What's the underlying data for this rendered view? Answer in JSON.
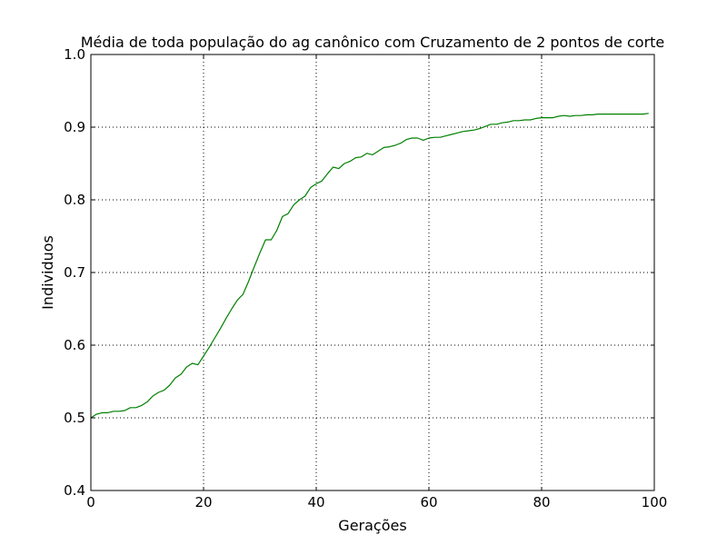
{
  "chart_data": {
    "type": "line",
    "title": "Média de toda população do ag canônico com Cruzamento de 2 pontos de corte",
    "xlabel": "Gerações",
    "ylabel": "Individuos",
    "xlim": [
      0,
      100
    ],
    "ylim": [
      0.4,
      1.0
    ],
    "x_ticks": [
      "0",
      "20",
      "40",
      "60",
      "80",
      "100"
    ],
    "y_ticks": [
      "0.4",
      "0.5",
      "0.6",
      "0.7",
      "0.8",
      "0.9",
      "1.0"
    ],
    "grid": true,
    "line_color": "#008000",
    "series": [
      {
        "x": [
          0,
          1,
          2,
          3,
          4,
          5,
          6,
          7,
          8,
          9,
          10,
          11,
          12,
          13,
          14,
          15,
          16,
          17,
          18,
          19,
          20,
          21,
          22,
          23,
          24,
          25,
          26,
          27,
          28,
          29,
          30,
          31,
          32,
          33,
          34,
          35,
          36,
          37,
          38,
          39,
          40,
          41,
          42,
          43,
          44,
          45,
          46,
          47,
          48,
          49,
          50,
          51,
          52,
          53,
          54,
          55,
          56,
          57,
          58,
          59,
          60,
          61,
          62,
          63,
          64,
          65,
          66,
          67,
          68,
          69,
          70,
          71,
          72,
          73,
          74,
          75,
          76,
          77,
          78,
          79,
          80,
          81,
          82,
          83,
          84,
          85,
          86,
          87,
          88,
          89,
          90,
          91,
          92,
          93,
          94,
          95,
          96,
          97,
          98,
          99
        ],
        "values": [
          0.5,
          0.505,
          0.507,
          0.507,
          0.509,
          0.509,
          0.51,
          0.514,
          0.514,
          0.517,
          0.522,
          0.53,
          0.535,
          0.538,
          0.545,
          0.555,
          0.56,
          0.57,
          0.575,
          0.573,
          0.585,
          0.597,
          0.61,
          0.623,
          0.637,
          0.65,
          0.662,
          0.67,
          0.688,
          0.708,
          0.727,
          0.745,
          0.745,
          0.758,
          0.777,
          0.781,
          0.793,
          0.8,
          0.805,
          0.817,
          0.822,
          0.826,
          0.836,
          0.845,
          0.843,
          0.85,
          0.853,
          0.858,
          0.859,
          0.864,
          0.862,
          0.867,
          0.872,
          0.873,
          0.875,
          0.878,
          0.883,
          0.885,
          0.885,
          0.882,
          0.885,
          0.886,
          0.886,
          0.888,
          0.89,
          0.892,
          0.894,
          0.895,
          0.896,
          0.898,
          0.901,
          0.904,
          0.904,
          0.906,
          0.907,
          0.909,
          0.909,
          0.91,
          0.91,
          0.912,
          0.913,
          0.913,
          0.913,
          0.915,
          0.916,
          0.915,
          0.916,
          0.916,
          0.917,
          0.917,
          0.918,
          0.918,
          0.918,
          0.918,
          0.918,
          0.918,
          0.918,
          0.918,
          0.918,
          0.919
        ]
      }
    ]
  }
}
